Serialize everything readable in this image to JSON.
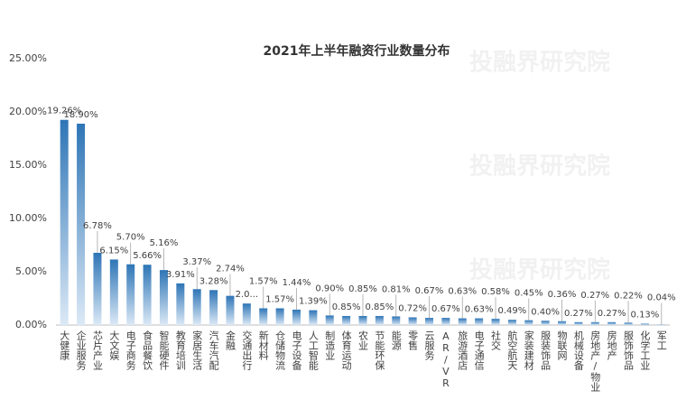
{
  "chart_data": {
    "type": "bar",
    "title": "2021年上半年融资行业数量分布",
    "watermark": "投融界研究院",
    "categories": [
      "大健康",
      "企业服务",
      "芯片产业",
      "大文娱",
      "电子商务",
      "食品餐饮",
      "智能硬件",
      "教育培训",
      "家居生活",
      "汽车汽配",
      "金融",
      "交通出行",
      "新材料",
      "仓储物流",
      "电子设备",
      "人工智能",
      "制造业",
      "体育运动",
      "农业",
      "节能环保",
      "能源",
      "零售",
      "云服务",
      "AR/VR",
      "旅游酒店",
      "电子通信",
      "社交",
      "航空航天",
      "家装建材",
      "服装饰品",
      "物联网",
      "机械设备",
      "房地产/物业",
      "房地产",
      "服饰饰品",
      "化学工业",
      "军工"
    ],
    "values": [
      19.26,
      18.9,
      6.78,
      6.15,
      5.7,
      5.66,
      5.16,
      3.91,
      3.37,
      3.28,
      2.74,
      2.02,
      1.57,
      1.57,
      1.44,
      1.39,
      0.9,
      0.85,
      0.85,
      0.85,
      0.81,
      0.72,
      0.67,
      0.67,
      0.63,
      0.63,
      0.58,
      0.49,
      0.45,
      0.4,
      0.36,
      0.27,
      0.27,
      0.27,
      0.22,
      0.13,
      0.04
    ],
    "value_labels": [
      "19.26%",
      "18.90%",
      "6.78%",
      "6.15%",
      "5.70%",
      "5.66%",
      "5.16%",
      "3.91%",
      "3.37%",
      "3.28%",
      "2.74%",
      "2.0...",
      "1.57%",
      "1.57%",
      "1.44%",
      "1.39%",
      "0.90%",
      "0.85%",
      "0.85%",
      "0.85%",
      "0.81%",
      "0.72%",
      "0.67%",
      "0.67%",
      "0.63%",
      "0.63%",
      "0.58%",
      "0.49%",
      "0.45%",
      "0.40%",
      "0.36%",
      "0.27%",
      "0.27%",
      "0.27%",
      "0.22%",
      "0.13%",
      "0.04%"
    ],
    "color": "#2e75b6",
    "ylim": [
      0,
      25
    ],
    "yticks": [
      {
        "value": 0,
        "label": "0.00%"
      },
      {
        "value": 5,
        "label": "5.00%"
      },
      {
        "value": 10,
        "label": "10.00%"
      },
      {
        "value": 15,
        "label": "15.00%"
      },
      {
        "value": 20,
        "label": "20.00%"
      },
      {
        "value": 25,
        "label": "25.00%"
      }
    ],
    "grid": false
  }
}
